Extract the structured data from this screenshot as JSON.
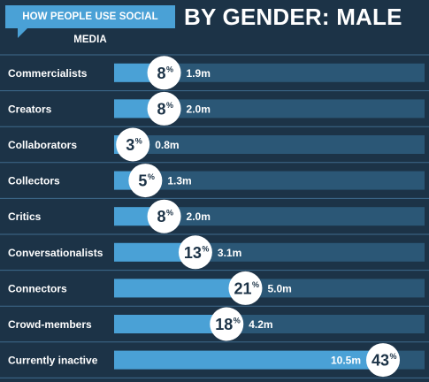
{
  "header": {
    "tag": "HOW PEOPLE USE SOCIAL MEDIA",
    "title": "BY GENDER: MALE"
  },
  "colors": {
    "background": "#1c3347",
    "track": "#2b5776",
    "bar": "#4aa1d6",
    "circle": "#ffffff",
    "divider": "#3f6b8c"
  },
  "chart_data": {
    "type": "bar",
    "orientation": "horizontal",
    "categories": [
      "Commercialists",
      "Creators",
      "Collaborators",
      "Collectors",
      "Critics",
      "Conversationalists",
      "Connectors",
      "Crowd-members",
      "Currently inactive"
    ],
    "series": [
      {
        "values": [
          8,
          8,
          3,
          5,
          8,
          13,
          21,
          18,
          43
        ]
      }
    ],
    "percent_labels": [
      "8",
      "8",
      "3",
      "5",
      "8",
      "13",
      "21",
      "18",
      "43"
    ],
    "value_labels": [
      "1.9m",
      "2.0m",
      "0.8m",
      "1.3m",
      "2.0m",
      "3.1m",
      "5.0m",
      "4.2m",
      "10.5m"
    ],
    "xlim": [
      0,
      43
    ]
  }
}
